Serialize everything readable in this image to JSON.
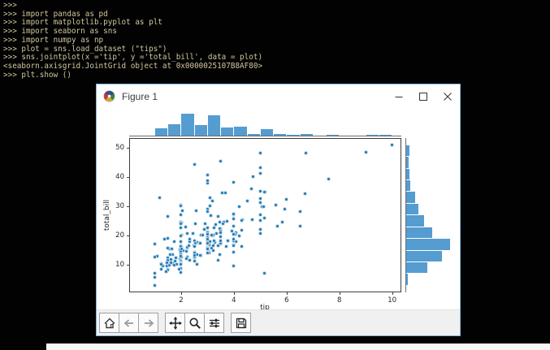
{
  "terminal": {
    "lines": [
      ">>>",
      ">>> import pandas as pd",
      ">>> import matplotlib.pyplot as plt",
      ">>> import seaborn as sns",
      ">>> import numpy as np",
      ">>> plot = sns.load_dataset (\"tips\")",
      ">>> sns.jointplot(x ='tip', y ='total_bill', data = plot)",
      "<seaborn.axisgrid.JointGrid object at 0x0000025107B8AF80>",
      ">>> plt.show ()"
    ],
    "text_color": "#d2c79f",
    "background": "#020202"
  },
  "window": {
    "title": "Figure 1",
    "controls": [
      "minimize",
      "maximize",
      "close"
    ],
    "border_color": "#7db7e2"
  },
  "toolbar": {
    "buttons": [
      "home",
      "back",
      "forward",
      "pan",
      "zoom",
      "configure-subplots",
      "save"
    ]
  },
  "chart_data": {
    "type": "scatter",
    "xlabel": "tip",
    "ylabel": "total_bill",
    "x_ticks": [
      2,
      4,
      6,
      8,
      10
    ],
    "y_ticks": [
      10,
      20,
      30,
      40,
      50
    ],
    "xlim": [
      0.03,
      10.35
    ],
    "ylim": [
      0.6,
      53.3
    ],
    "grid": false,
    "legend": "none",
    "point_color": "#1f77b4",
    "bar_color": "#559cd0",
    "marginal_top": {
      "type": "histogram",
      "axis": "x",
      "bin_start": 1.0,
      "bin_width": 0.5,
      "bin_end": 10.0
    },
    "marginal_right": {
      "type": "histogram",
      "axis": "y",
      "bin_start": 3.0,
      "bin_width": 4.0,
      "bin_end": 51.0
    },
    "points": [
      [
        1.01,
        16.99
      ],
      [
        1.66,
        10.34
      ],
      [
        3.5,
        21.01
      ],
      [
        3.31,
        23.68
      ],
      [
        3.61,
        24.59
      ],
      [
        4.71,
        25.29
      ],
      [
        2.0,
        8.77
      ],
      [
        3.12,
        26.88
      ],
      [
        1.96,
        15.04
      ],
      [
        3.23,
        14.78
      ],
      [
        1.71,
        10.27
      ],
      [
        5.0,
        35.26
      ],
      [
        1.57,
        15.42
      ],
      [
        3.0,
        18.43
      ],
      [
        3.02,
        14.83
      ],
      [
        3.92,
        21.58
      ],
      [
        1.67,
        10.33
      ],
      [
        3.71,
        16.29
      ],
      [
        3.5,
        16.97
      ],
      [
        3.35,
        20.65
      ],
      [
        4.08,
        17.92
      ],
      [
        2.75,
        20.29
      ],
      [
        2.23,
        15.77
      ],
      [
        7.58,
        39.42
      ],
      [
        3.18,
        19.82
      ],
      [
        2.34,
        17.81
      ],
      [
        2.0,
        13.37
      ],
      [
        2.0,
        12.69
      ],
      [
        4.3,
        21.7
      ],
      [
        3.0,
        19.65
      ],
      [
        1.45,
        9.55
      ],
      [
        2.5,
        18.35
      ],
      [
        3.0,
        15.06
      ],
      [
        2.45,
        20.69
      ],
      [
        3.27,
        17.78
      ],
      [
        3.6,
        24.06
      ],
      [
        2.0,
        16.31
      ],
      [
        3.07,
        16.93
      ],
      [
        2.31,
        18.69
      ],
      [
        5.0,
        31.27
      ],
      [
        2.24,
        16.04
      ],
      [
        2.54,
        17.46
      ],
      [
        3.06,
        13.94
      ],
      [
        1.32,
        9.68
      ],
      [
        5.6,
        30.4
      ],
      [
        3.0,
        18.29
      ],
      [
        5.0,
        22.23
      ],
      [
        6.0,
        32.4
      ],
      [
        2.05,
        28.55
      ],
      [
        3.0,
        18.04
      ],
      [
        2.5,
        12.54
      ],
      [
        2.6,
        10.29
      ],
      [
        5.2,
        34.81
      ],
      [
        1.56,
        9.94
      ],
      [
        4.34,
        25.56
      ],
      [
        3.51,
        19.49
      ],
      [
        3.0,
        38.01
      ],
      [
        1.5,
        26.41
      ],
      [
        1.76,
        11.24
      ],
      [
        6.73,
        48.27
      ],
      [
        3.21,
        20.29
      ],
      [
        2.0,
        13.81
      ],
      [
        1.98,
        11.02
      ],
      [
        3.76,
        18.29
      ],
      [
        2.64,
        17.59
      ],
      [
        3.15,
        20.08
      ],
      [
        2.47,
        16.45
      ],
      [
        1.0,
        3.07
      ],
      [
        2.01,
        20.23
      ],
      [
        2.09,
        15.01
      ],
      [
        1.97,
        12.02
      ],
      [
        3.0,
        17.07
      ],
      [
        3.14,
        26.86
      ],
      [
        5.0,
        25.28
      ],
      [
        2.2,
        14.73
      ],
      [
        1.25,
        10.51
      ],
      [
        3.08,
        17.92
      ],
      [
        4.0,
        27.2
      ],
      [
        3.0,
        22.76
      ],
      [
        2.71,
        17.29
      ],
      [
        3.0,
        19.44
      ],
      [
        3.4,
        16.66
      ],
      [
        1.83,
        10.07
      ],
      [
        5.0,
        32.68
      ],
      [
        2.03,
        15.98
      ],
      [
        5.17,
        34.83
      ],
      [
        2.0,
        13.03
      ],
      [
        4.0,
        18.28
      ],
      [
        5.85,
        24.71
      ],
      [
        3.0,
        21.16
      ],
      [
        3.0,
        28.97
      ],
      [
        3.5,
        22.49
      ],
      [
        1.0,
        5.75
      ],
      [
        4.3,
        16.32
      ],
      [
        3.25,
        22.75
      ],
      [
        4.73,
        40.17
      ],
      [
        4.0,
        27.28
      ],
      [
        1.5,
        12.03
      ],
      [
        3.0,
        21.01
      ],
      [
        1.5,
        12.46
      ],
      [
        2.5,
        11.35
      ],
      [
        3.0,
        15.38
      ],
      [
        2.5,
        44.3
      ],
      [
        3.48,
        22.42
      ],
      [
        4.08,
        20.92
      ],
      [
        1.64,
        15.36
      ],
      [
        4.06,
        20.49
      ],
      [
        4.29,
        25.21
      ],
      [
        3.76,
        18.24
      ],
      [
        4.0,
        14.31
      ],
      [
        3.0,
        14.0
      ],
      [
        1.0,
        7.25
      ],
      [
        4.0,
        38.07
      ],
      [
        2.55,
        23.95
      ],
      [
        4.0,
        25.71
      ],
      [
        3.5,
        17.31
      ],
      [
        5.07,
        29.93
      ],
      [
        1.5,
        10.65
      ],
      [
        1.8,
        12.43
      ],
      [
        2.92,
        24.08
      ],
      [
        2.31,
        11.69
      ],
      [
        1.68,
        13.42
      ],
      [
        2.5,
        14.26
      ],
      [
        2.0,
        15.95
      ],
      [
        2.52,
        12.48
      ],
      [
        4.2,
        29.8
      ],
      [
        1.48,
        8.52
      ],
      [
        2.0,
        14.52
      ],
      [
        2.0,
        11.38
      ],
      [
        2.18,
        22.82
      ],
      [
        1.5,
        19.08
      ],
      [
        2.83,
        20.27
      ],
      [
        1.5,
        11.17
      ],
      [
        2.0,
        12.26
      ],
      [
        3.25,
        18.26
      ],
      [
        1.25,
        8.51
      ],
      [
        2.0,
        10.33
      ],
      [
        2.0,
        14.15
      ],
      [
        2.0,
        16.0
      ],
      [
        2.75,
        13.16
      ],
      [
        3.5,
        17.47
      ],
      [
        6.7,
        34.3
      ],
      [
        5.0,
        41.19
      ],
      [
        5.0,
        27.05
      ],
      [
        2.3,
        16.43
      ],
      [
        1.5,
        8.35
      ],
      [
        1.36,
        18.64
      ],
      [
        1.63,
        11.87
      ],
      [
        1.73,
        9.78
      ],
      [
        2.0,
        7.51
      ],
      [
        2.5,
        14.07
      ],
      [
        2.0,
        13.13
      ],
      [
        2.74,
        17.26
      ],
      [
        2.0,
        24.55
      ],
      [
        2.0,
        19.77
      ],
      [
        5.14,
        29.85
      ],
      [
        5.0,
        48.17
      ],
      [
        3.75,
        25.0
      ],
      [
        2.61,
        13.39
      ],
      [
        2.0,
        16.49
      ],
      [
        3.5,
        21.5
      ],
      [
        2.5,
        12.66
      ],
      [
        2.0,
        16.21
      ],
      [
        2.0,
        13.81
      ],
      [
        3.0,
        17.51
      ],
      [
        3.48,
        24.52
      ],
      [
        2.24,
        20.76
      ],
      [
        4.5,
        31.71
      ],
      [
        1.61,
        10.59
      ],
      [
        2.0,
        10.63
      ],
      [
        10.0,
        50.81
      ],
      [
        3.16,
        15.81
      ],
      [
        5.15,
        7.25
      ],
      [
        3.18,
        31.85
      ],
      [
        4.0,
        16.82
      ],
      [
        3.11,
        32.9
      ],
      [
        2.0,
        17.89
      ],
      [
        2.0,
        14.48
      ],
      [
        4.0,
        9.6
      ],
      [
        3.55,
        34.63
      ],
      [
        3.68,
        34.65
      ],
      [
        5.65,
        23.33
      ],
      [
        3.5,
        45.35
      ],
      [
        6.5,
        23.17
      ],
      [
        3.0,
        40.55
      ],
      [
        5.0,
        20.69
      ],
      [
        3.5,
        20.9
      ],
      [
        2.0,
        30.46
      ],
      [
        3.5,
        18.15
      ],
      [
        4.0,
        23.1
      ],
      [
        1.5,
        15.69
      ],
      [
        4.19,
        19.81
      ],
      [
        2.56,
        28.44
      ],
      [
        2.02,
        15.48
      ],
      [
        4.0,
        16.58
      ],
      [
        1.44,
        7.56
      ],
      [
        2.0,
        10.34
      ],
      [
        5.0,
        43.11
      ],
      [
        2.0,
        13.0
      ],
      [
        2.0,
        13.51
      ],
      [
        4.0,
        18.71
      ],
      [
        2.01,
        12.74
      ],
      [
        2.0,
        13.0
      ],
      [
        2.5,
        16.4
      ],
      [
        4.0,
        20.53
      ],
      [
        3.23,
        16.47
      ],
      [
        3.41,
        26.59
      ],
      [
        3.0,
        38.73
      ],
      [
        2.03,
        24.27
      ],
      [
        2.23,
        12.76
      ],
      [
        2.0,
        30.06
      ],
      [
        5.16,
        25.89
      ],
      [
        9.0,
        48.33
      ],
      [
        2.5,
        13.27
      ],
      [
        6.5,
        28.17
      ],
      [
        1.1,
        12.9
      ],
      [
        3.0,
        28.15
      ],
      [
        1.5,
        11.59
      ],
      [
        1.44,
        7.74
      ],
      [
        3.09,
        30.14
      ],
      [
        2.2,
        12.16
      ],
      [
        3.48,
        13.42
      ],
      [
        1.92,
        8.58
      ],
      [
        3.0,
        15.98
      ],
      [
        1.58,
        13.42
      ],
      [
        2.5,
        16.27
      ],
      [
        2.0,
        10.09
      ],
      [
        3.0,
        20.45
      ],
      [
        2.72,
        13.28
      ],
      [
        2.88,
        22.12
      ],
      [
        2.0,
        24.01
      ],
      [
        3.0,
        15.69
      ],
      [
        3.39,
        11.61
      ],
      [
        1.47,
        10.77
      ],
      [
        3.0,
        15.53
      ],
      [
        1.25,
        10.07
      ],
      [
        1.0,
        12.6
      ],
      [
        1.17,
        32.83
      ],
      [
        4.67,
        35.83
      ],
      [
        5.92,
        29.03
      ],
      [
        2.0,
        27.18
      ],
      [
        2.0,
        22.67
      ],
      [
        1.75,
        17.82
      ],
      [
        3.0,
        18.78
      ]
    ]
  }
}
